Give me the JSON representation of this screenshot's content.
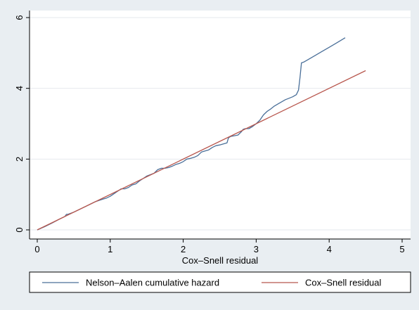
{
  "chart_data": {
    "type": "line",
    "title": "",
    "xlabel": "Cox–Snell residual",
    "ylabel": "",
    "xlim": [
      0,
      5
    ],
    "ylim": [
      0,
      6
    ],
    "x_ticks": [
      0,
      1,
      2,
      3,
      4,
      5
    ],
    "y_ticks": [
      0,
      2,
      4,
      6
    ],
    "grid": "horizontal",
    "legend": "bottom",
    "series": [
      {
        "name": "Nelson–Aalen cumulative hazard",
        "color": "#4a6f99",
        "x": [
          0,
          0.1,
          0.2,
          0.3,
          0.38,
          0.4,
          0.42,
          0.5,
          0.6,
          0.7,
          0.8,
          0.9,
          0.95,
          1.0,
          1.05,
          1.1,
          1.15,
          1.2,
          1.25,
          1.3,
          1.35,
          1.4,
          1.45,
          1.5,
          1.55,
          1.6,
          1.65,
          1.7,
          1.75,
          1.8,
          1.85,
          1.9,
          1.95,
          2.0,
          2.05,
          2.1,
          2.15,
          2.2,
          2.25,
          2.3,
          2.35,
          2.4,
          2.45,
          2.5,
          2.55,
          2.6,
          2.62,
          2.65,
          2.7,
          2.75,
          2.8,
          2.82,
          2.85,
          2.9,
          2.95,
          3.0,
          3.05,
          3.1,
          3.15,
          3.2,
          3.25,
          3.3,
          3.35,
          3.4,
          3.45,
          3.5,
          3.55,
          3.58,
          3.6,
          3.62,
          3.65,
          3.7,
          3.8,
          3.9,
          4.0,
          4.1,
          4.22
        ],
        "y": [
          0,
          0.09,
          0.19,
          0.3,
          0.38,
          0.44,
          0.44,
          0.5,
          0.6,
          0.7,
          0.8,
          0.87,
          0.9,
          0.95,
          1.02,
          1.09,
          1.16,
          1.16,
          1.2,
          1.27,
          1.3,
          1.38,
          1.45,
          1.52,
          1.56,
          1.6,
          1.7,
          1.74,
          1.74,
          1.76,
          1.8,
          1.85,
          1.88,
          1.93,
          2.0,
          2.02,
          2.05,
          2.1,
          2.2,
          2.23,
          2.26,
          2.33,
          2.38,
          2.4,
          2.43,
          2.46,
          2.6,
          2.64,
          2.66,
          2.68,
          2.78,
          2.84,
          2.86,
          2.86,
          2.92,
          3.0,
          3.1,
          3.25,
          3.35,
          3.42,
          3.5,
          3.56,
          3.62,
          3.68,
          3.72,
          3.76,
          3.82,
          3.95,
          4.3,
          4.72,
          4.74,
          4.8,
          4.92,
          5.04,
          5.16,
          5.28,
          5.43
        ]
      },
      {
        "name": "Cox–Snell residual",
        "color": "#b8574e",
        "x": [
          0,
          4.5
        ],
        "y": [
          0,
          4.5
        ]
      }
    ]
  }
}
